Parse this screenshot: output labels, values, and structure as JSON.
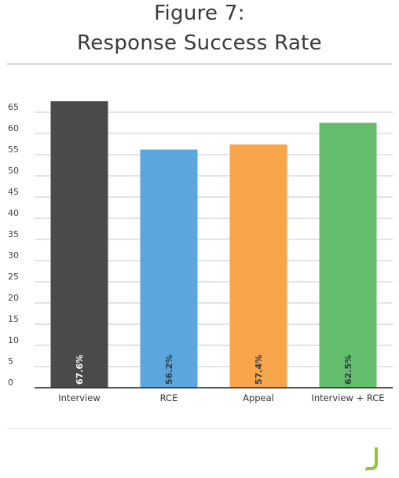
{
  "title_line1": "Figure 7:",
  "title_line2": "Response Success Rate",
  "chart_data": {
    "type": "bar",
    "title": "Figure 7: Response Success Rate",
    "categories": [
      "Interview",
      "RCE",
      "Appeal",
      "Interview + RCE"
    ],
    "values": [
      67.6,
      56.2,
      57.4,
      62.5
    ],
    "data_labels": [
      "67.6%",
      "56.2%",
      "57.4%",
      "62.5%"
    ],
    "colors": [
      "#4a4a4a",
      "#5ba6dd",
      "#f8a54b",
      "#63bd6b"
    ],
    "ylim": [
      0,
      67.6
    ],
    "yticks": [
      0,
      5,
      10,
      15,
      20,
      25,
      30,
      35,
      40,
      45,
      50,
      55,
      60,
      65
    ],
    "grid": true,
    "xlabel": "",
    "ylabel": ""
  },
  "logo_color": "#8cc63f"
}
